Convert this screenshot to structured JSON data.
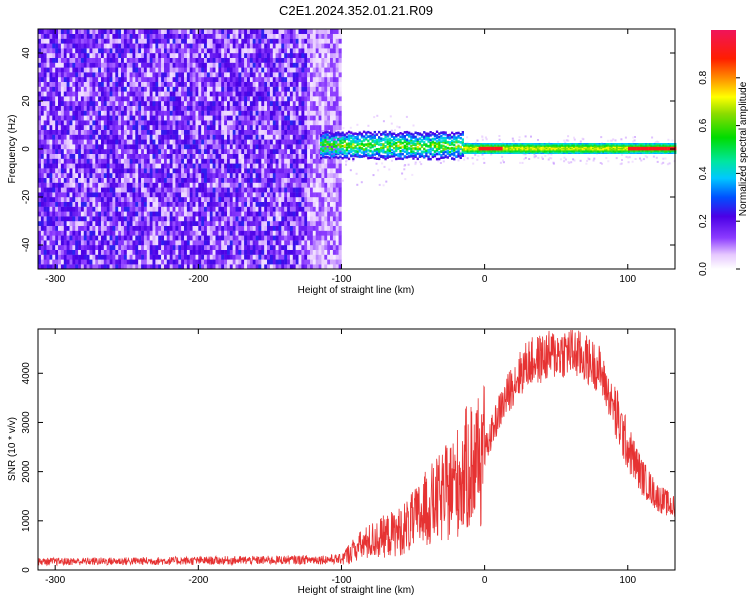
{
  "title": "C2E1.2024.352.01.21.R09",
  "chart_data": [
    {
      "type": "heatmap",
      "xlabel": "Height of straight line (km)",
      "ylabel": "Frequency (Hz)",
      "xlim": [
        -312,
        133
      ],
      "ylim": [
        -50,
        50
      ],
      "xticks": [
        -300,
        -200,
        -100,
        0,
        100
      ],
      "yticks": [
        -40,
        -20,
        0,
        20,
        40
      ],
      "colorbar": {
        "label": "Normalized spectral amplitude",
        "range": [
          0,
          1
        ],
        "ticks": [
          0.0,
          0.2,
          0.4,
          0.6,
          0.8
        ],
        "tick_labels": [
          "0.0",
          "0.2",
          "0.4",
          "0.6",
          "0.8"
        ],
        "colormap": "rainbow (violet-blue-cyan-green-yellow-red-magenta)"
      },
      "regions": [
        {
          "x_range": [
            -312,
            -100
          ],
          "description": "broadband noise across all frequencies",
          "freq_range": [
            -50,
            50
          ],
          "amplitude": 0.05
        },
        {
          "x_range": [
            -115,
            -15
          ],
          "description": "signal band",
          "center_freq": 1,
          "halfwidth": 5,
          "amplitude_range": [
            0.3,
            0.6
          ]
        },
        {
          "x_range": [
            -15,
            133
          ],
          "description": "narrow signal band",
          "center_freq": 0,
          "halfwidth": 2,
          "amplitude_range": [
            0.5,
            0.95
          ]
        }
      ]
    },
    {
      "type": "line",
      "xlabel": "Height of straight line (km)",
      "ylabel": "SNR (10 * v/v)",
      "xlim": [
        -312,
        133
      ],
      "ylim": [
        0,
        4900
      ],
      "xticks": [
        -300,
        -200,
        -100,
        0,
        100
      ],
      "yticks": [
        0,
        1000,
        2000,
        3000,
        4000
      ],
      "series": [
        {
          "color": "#e63232",
          "envelope_x": [
            -312,
            -250,
            -200,
            -150,
            -100,
            -90,
            -80,
            -60,
            -50,
            -40,
            -30,
            -20,
            -10,
            0,
            5,
            10,
            20,
            30,
            40,
            50,
            60,
            70,
            80,
            85,
            90,
            100,
            110,
            120,
            133
          ],
          "envelope_y": [
            170,
            180,
            190,
            200,
            220,
            450,
            600,
            800,
            1000,
            1300,
            1500,
            1800,
            2200,
            2400,
            2800,
            3200,
            3800,
            4200,
            4300,
            4400,
            4450,
            4300,
            4100,
            3700,
            3300,
            2500,
            1900,
            1500,
            1250
          ]
        }
      ]
    }
  ]
}
